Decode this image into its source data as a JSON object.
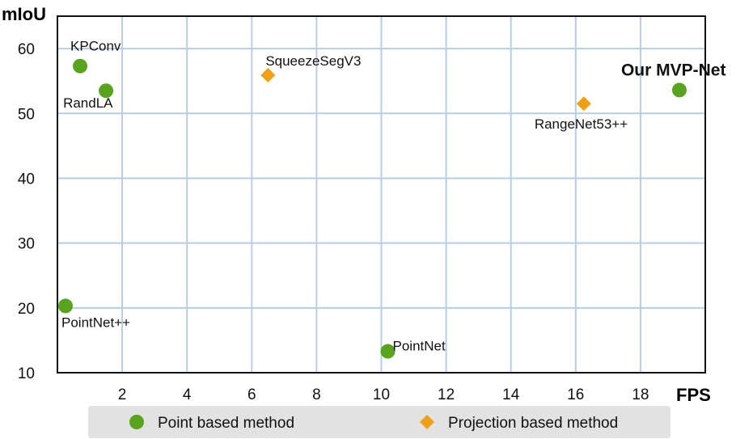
{
  "chart_data": {
    "type": "scatter",
    "xlabel": "FPS",
    "ylabel": "mIoU",
    "xlim": [
      0,
      20
    ],
    "ylim": [
      10,
      65
    ],
    "x_ticks": [
      "2",
      "4",
      "6",
      "8",
      "10",
      "12",
      "14",
      "16",
      "18"
    ],
    "y_ticks": [
      "10",
      "20",
      "30",
      "40",
      "50",
      "60"
    ],
    "grid": true,
    "legend_position": "bottom",
    "series": [
      {
        "name": "Point based method",
        "marker": "circle",
        "color": "#5aa31e",
        "points": [
          {
            "label": "KPConv",
            "x": 0.7,
            "y": 57.3
          },
          {
            "label": "RandLA",
            "x": 1.5,
            "y": 53.5
          },
          {
            "label": "PointNet++",
            "x": 0.25,
            "y": 20.3
          },
          {
            "label": "PointNet",
            "x": 10.2,
            "y": 13.3
          },
          {
            "label": "Our MVP-Net",
            "x": 19.2,
            "y": 53.6,
            "emphasis": true
          }
        ]
      },
      {
        "name": "Projection based method",
        "marker": "diamond",
        "color": "#f0a012",
        "points": [
          {
            "label": "SqueezeSegV3",
            "x": 6.5,
            "y": 55.9
          },
          {
            "label": "RangeNet53++",
            "x": 16.25,
            "y": 51.5
          }
        ]
      }
    ]
  }
}
